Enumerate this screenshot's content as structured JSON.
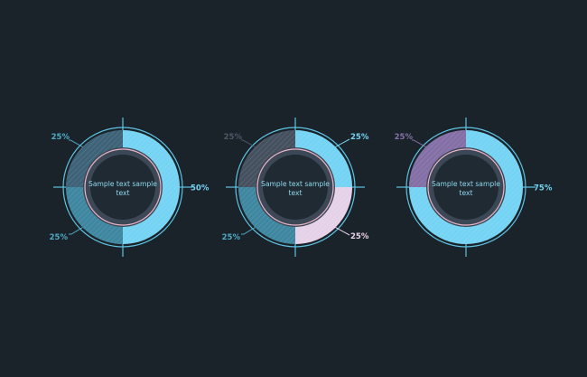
{
  "colors": {
    "background": "#1a2329",
    "inner_disc": "#3d4856",
    "hub": "#1f2a32",
    "outline": "#5fc3e4",
    "pink_ring": "#e8b5c9"
  },
  "chart_data": [
    {
      "type": "pie",
      "variant": "donut",
      "center_text": [
        "Sample text sample",
        "text"
      ],
      "segments": [
        {
          "value": 50,
          "label": "50%",
          "color": "#75d3f3",
          "label_color": "#75d3f3",
          "label_side": "right"
        },
        {
          "value": 25,
          "label": "25%",
          "color": "#3f87a0",
          "label_color": "#4fa9c6",
          "label_side": "bottom-left"
        },
        {
          "value": 25,
          "label": "25%",
          "color": "#3e6378",
          "label_color": "#4fa9c6",
          "label_side": "top-left"
        }
      ]
    },
    {
      "type": "pie",
      "variant": "donut",
      "center_text": [
        "Sample text sample",
        "text"
      ],
      "segments": [
        {
          "value": 25,
          "label": "25%",
          "color": "#75d3f3",
          "label_color": "#75d3f3",
          "label_side": "top-right"
        },
        {
          "value": 25,
          "label": "25%",
          "color": "#e6d2e8",
          "label_color": "#e6d2e8",
          "label_side": "bottom-right"
        },
        {
          "value": 25,
          "label": "25%",
          "color": "#3f87a0",
          "label_color": "#4fa9c6",
          "label_side": "bottom-left"
        },
        {
          "value": 25,
          "label": "25%",
          "color": "#465160",
          "label_color": "#4c5866",
          "label_side": "top-left"
        }
      ]
    },
    {
      "type": "pie",
      "variant": "donut",
      "center_text": [
        "Sample text sample",
        "text"
      ],
      "segments": [
        {
          "value": 75,
          "label": "75%",
          "color": "#75d3f3",
          "label_color": "#75d3f3",
          "label_side": "right"
        },
        {
          "value": 25,
          "label": "25%",
          "color": "#8470a6",
          "label_color": "#8470a6",
          "label_side": "top-left"
        }
      ]
    }
  ]
}
